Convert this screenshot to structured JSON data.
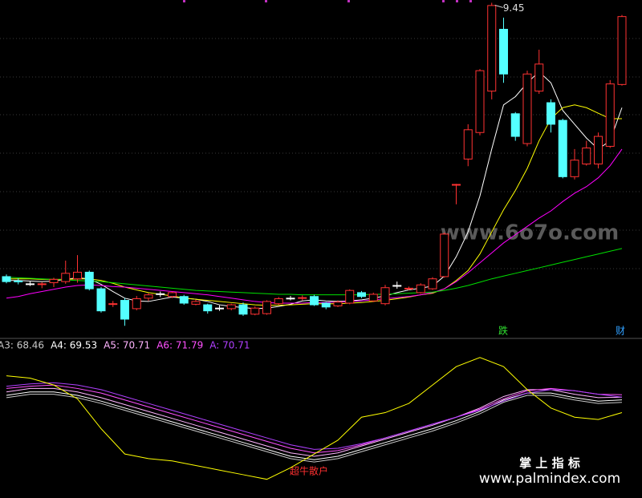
{
  "chart_data": [
    {
      "type": "candlestick",
      "ylim": [
        3.4,
        9.5
      ],
      "candles": [
        {
          "open": 4.49,
          "close": 4.4,
          "high": 4.53,
          "low": 4.37
        },
        {
          "open": 4.41,
          "close": 4.4,
          "high": 4.46,
          "low": 4.35
        },
        {
          "open": 4.36,
          "close": 4.36,
          "high": 4.4,
          "low": 4.32
        },
        {
          "open": 4.35,
          "close": 4.36,
          "high": 4.39,
          "low": 4.28
        },
        {
          "open": 4.38,
          "close": 4.44,
          "high": 4.47,
          "low": 4.3
        },
        {
          "open": 4.4,
          "close": 4.55,
          "high": 4.78,
          "low": 4.36
        },
        {
          "open": 4.45,
          "close": 4.57,
          "high": 4.88,
          "low": 4.38
        },
        {
          "open": 4.57,
          "close": 4.27,
          "high": 4.6,
          "low": 4.24
        },
        {
          "open": 4.27,
          "close": 3.87,
          "high": 4.3,
          "low": 3.84
        },
        {
          "open": 3.99,
          "close": 4.0,
          "high": 4.05,
          "low": 3.94
        },
        {
          "open": 4.06,
          "close": 3.72,
          "high": 4.1,
          "low": 3.6
        },
        {
          "open": 3.91,
          "close": 4.09,
          "high": 4.14,
          "low": 3.88
        },
        {
          "open": 4.1,
          "close": 4.16,
          "high": 4.19,
          "low": 4.05
        },
        {
          "open": 4.18,
          "close": 4.18,
          "high": 4.22,
          "low": 4.12
        },
        {
          "open": 4.13,
          "close": 4.2,
          "high": 4.22,
          "low": 4.1
        },
        {
          "open": 4.13,
          "close": 4.01,
          "high": 4.16,
          "low": 3.98
        },
        {
          "open": 3.99,
          "close": 4.04,
          "high": 4.07,
          "low": 3.97
        },
        {
          "open": 3.98,
          "close": 3.87,
          "high": 4.0,
          "low": 3.82
        },
        {
          "open": 3.92,
          "close": 3.92,
          "high": 3.97,
          "low": 3.87
        },
        {
          "open": 3.91,
          "close": 3.98,
          "high": 4.0,
          "low": 3.88
        },
        {
          "open": 3.98,
          "close": 3.81,
          "high": 4.02,
          "low": 3.78
        },
        {
          "open": 3.81,
          "close": 3.92,
          "high": 3.95,
          "low": 3.79
        },
        {
          "open": 3.82,
          "close": 4.04,
          "high": 4.06,
          "low": 3.8
        },
        {
          "open": 4.0,
          "close": 4.09,
          "high": 4.12,
          "low": 3.98
        },
        {
          "open": 4.1,
          "close": 4.1,
          "high": 4.14,
          "low": 4.06
        },
        {
          "open": 4.1,
          "close": 4.11,
          "high": 4.15,
          "low": 4.06
        },
        {
          "open": 4.13,
          "close": 3.98,
          "high": 4.16,
          "low": 3.96
        },
        {
          "open": 4.01,
          "close": 3.94,
          "high": 4.03,
          "low": 3.9
        },
        {
          "open": 3.96,
          "close": 4.03,
          "high": 4.06,
          "low": 3.94
        },
        {
          "open": 4.01,
          "close": 4.24,
          "high": 4.26,
          "low": 3.99
        },
        {
          "open": 4.2,
          "close": 4.13,
          "high": 4.23,
          "low": 4.1
        },
        {
          "open": 4.05,
          "close": 4.17,
          "high": 4.2,
          "low": 4.03
        },
        {
          "open": 4.0,
          "close": 4.29,
          "high": 4.34,
          "low": 3.97
        },
        {
          "open": 4.33,
          "close": 4.33,
          "high": 4.4,
          "low": 4.27
        },
        {
          "open": 4.27,
          "close": 4.28,
          "high": 4.31,
          "low": 4.24
        },
        {
          "open": 4.2,
          "close": 4.34,
          "high": 4.37,
          "low": 4.18
        },
        {
          "open": 4.27,
          "close": 4.45,
          "high": 4.48,
          "low": 4.25
        },
        {
          "open": 4.49,
          "close": 5.26,
          "high": 5.29,
          "low": 4.47
        },
        {
          "open": 6.15,
          "close": 6.16,
          "high": 6.17,
          "low": 5.8
        },
        {
          "open": 6.62,
          "close": 7.15,
          "high": 7.25,
          "low": 6.49
        },
        {
          "open": 7.1,
          "close": 8.22,
          "high": 8.25,
          "low": 7.05
        },
        {
          "open": 7.85,
          "close": 9.4,
          "high": 9.45,
          "low": 7.7
        },
        {
          "open": 8.97,
          "close": 8.16,
          "high": 9.18,
          "low": 8.0
        },
        {
          "open": 7.44,
          "close": 7.03,
          "high": 7.47,
          "low": 6.95
        },
        {
          "open": 6.9,
          "close": 8.16,
          "high": 8.22,
          "low": 6.85
        },
        {
          "open": 7.85,
          "close": 8.34,
          "high": 8.6,
          "low": 7.8
        },
        {
          "open": 7.64,
          "close": 7.25,
          "high": 7.7,
          "low": 7.1
        },
        {
          "open": 7.32,
          "close": 6.3,
          "high": 7.35,
          "low": 6.27
        },
        {
          "open": 6.3,
          "close": 6.6,
          "high": 6.8,
          "low": 6.25
        },
        {
          "open": 6.53,
          "close": 6.82,
          "high": 6.95,
          "low": 6.5
        },
        {
          "open": 6.53,
          "close": 7.03,
          "high": 7.1,
          "low": 6.45
        },
        {
          "open": 6.85,
          "close": 7.98,
          "high": 8.05,
          "low": 6.82
        },
        {
          "open": 7.97,
          "close": 9.2,
          "high": 9.23,
          "low": 7.95
        }
      ],
      "series": [
        {
          "color": "#ffffff",
          "values": [
            4.42,
            4.42,
            4.41,
            4.4,
            4.41,
            4.44,
            4.47,
            4.45,
            4.35,
            4.22,
            4.1,
            4.05,
            4.04,
            4.08,
            4.12,
            4.1,
            4.08,
            4.04,
            3.98,
            3.95,
            3.93,
            3.91,
            3.92,
            3.95,
            3.99,
            4.05,
            4.07,
            4.05,
            4.04,
            4.05,
            4.07,
            4.1,
            4.14,
            4.2,
            4.25,
            4.28,
            4.32,
            4.5,
            4.85,
            5.3,
            5.95,
            6.8,
            7.6,
            7.75,
            8.0,
            8.2,
            8.0,
            7.5,
            7.25,
            7.0,
            6.8,
            6.95,
            7.55
          ]
        },
        {
          "color": "#ffff00",
          "values": [
            4.45,
            4.45,
            4.45,
            4.44,
            4.44,
            4.44,
            4.45,
            4.45,
            4.42,
            4.37,
            4.3,
            4.25,
            4.2,
            4.17,
            4.14,
            4.1,
            4.08,
            4.06,
            4.04,
            4.02,
            4.0,
            3.98,
            3.97,
            3.97,
            3.98,
            3.99,
            4.0,
            4.0,
            4.0,
            4.01,
            4.02,
            4.04,
            4.06,
            4.09,
            4.12,
            4.16,
            4.19,
            4.27,
            4.42,
            4.6,
            4.9,
            5.3,
            5.7,
            6.05,
            6.45,
            6.95,
            7.35,
            7.55,
            7.6,
            7.55,
            7.45,
            7.35,
            7.35
          ]
        },
        {
          "color": "#ff00ff",
          "values": [
            4.1,
            4.13,
            4.18,
            4.22,
            4.26,
            4.3,
            4.33,
            4.34,
            4.33,
            4.31,
            4.3,
            4.28,
            4.26,
            4.24,
            4.22,
            4.2,
            4.18,
            4.16,
            4.13,
            4.1,
            4.07,
            4.04,
            4.02,
            4.01,
            4.01,
            4.01,
            4.02,
            4.02,
            4.03,
            4.04,
            4.05,
            4.07,
            4.09,
            4.11,
            4.13,
            4.16,
            4.2,
            4.27,
            4.4,
            4.56,
            4.74,
            4.92,
            5.1,
            5.25,
            5.4,
            5.55,
            5.68,
            5.85,
            6.0,
            6.12,
            6.28,
            6.5,
            6.8
          ]
        },
        {
          "color": "#00e000",
          "values": [
            4.48,
            4.47,
            4.46,
            4.45,
            4.44,
            4.43,
            4.42,
            4.41,
            4.4,
            4.38,
            4.36,
            4.34,
            4.32,
            4.3,
            4.28,
            4.26,
            4.24,
            4.23,
            4.22,
            4.21,
            4.2,
            4.19,
            4.18,
            4.17,
            4.17,
            4.16,
            4.16,
            4.16,
            4.16,
            4.16,
            4.16,
            4.17,
            4.17,
            4.18,
            4.19,
            4.2,
            4.21,
            4.24,
            4.28,
            4.33,
            4.39,
            4.45,
            4.5,
            4.55,
            4.6,
            4.65,
            4.7,
            4.75,
            4.8,
            4.85,
            4.9,
            4.95,
            5.0
          ]
        }
      ],
      "high_label": 9.45,
      "markers": [
        "跌",
        "财"
      ],
      "watermark": "www.6o7o.com"
    },
    {
      "type": "line",
      "ylim": [
        30,
        90
      ],
      "series": [
        {
          "name": "A3",
          "legend_label": "A3: 68.46",
          "color": "#c8c8c8",
          "values": [
            70.5,
            72,
            72,
            70.5,
            68,
            65,
            62,
            59,
            56,
            53,
            50,
            47,
            44,
            42.5,
            44,
            47,
            50,
            53,
            56,
            59.5,
            63.5,
            68.5,
            71.5,
            71.5,
            69.5,
            68,
            68.46
          ]
        },
        {
          "name": "A4",
          "legend_label": "A4: 69.53",
          "color": "#ffffff",
          "values": [
            71.5,
            73,
            73,
            71.5,
            69,
            66,
            63,
            60,
            57,
            54,
            51,
            48,
            45,
            43.5,
            45,
            48,
            51,
            54,
            57,
            60.5,
            64.5,
            69.5,
            72.5,
            72.5,
            70.5,
            69,
            69.53
          ]
        },
        {
          "name": "A5",
          "legend_label": "A5: 70.71",
          "color": "#ffb4ff",
          "values": [
            73,
            74.5,
            74.5,
            73,
            70.5,
            67.5,
            64.5,
            61.5,
            58.5,
            55.5,
            52.5,
            49.5,
            46.5,
            45,
            46.5,
            49.5,
            52.5,
            55.5,
            58.5,
            62,
            66,
            71,
            74,
            74,
            72,
            70.5,
            70.71
          ]
        },
        {
          "name": "A6",
          "legend_label": "A6: 71.79",
          "color": "#ff50ff",
          "values": [
            74.5,
            75.5,
            76,
            74.5,
            72.5,
            69.5,
            66.5,
            63.5,
            60.5,
            57.5,
            54.5,
            51.5,
            48.5,
            46.5,
            47.5,
            50,
            53,
            56,
            59,
            62,
            65.5,
            70,
            73.5,
            74.5,
            73.5,
            72,
            71.79
          ]
        },
        {
          "name": "A",
          "legend_label": "A: 70.71",
          "color": "#b040ff",
          "values": [
            75.5,
            76.5,
            77,
            76,
            74,
            71,
            68,
            65,
            62,
            59,
            56,
            53,
            50,
            48,
            48.5,
            50.5,
            53,
            56,
            59,
            62,
            65,
            69,
            72.5,
            74,
            73.5,
            72,
            70.71
          ]
        },
        {
          "color": "#ffff00",
          "values": [
            80,
            79,
            76,
            70,
            57,
            46,
            44,
            43,
            41,
            39,
            37,
            35,
            40,
            46,
            52,
            62,
            64,
            68,
            76,
            84,
            88,
            84,
            74,
            66,
            62,
            61,
            64
          ]
        }
      ],
      "annotation": "超牛散户",
      "watermark_title": "掌 上 指 标",
      "watermark_url": "www.palmindex.com"
    }
  ]
}
